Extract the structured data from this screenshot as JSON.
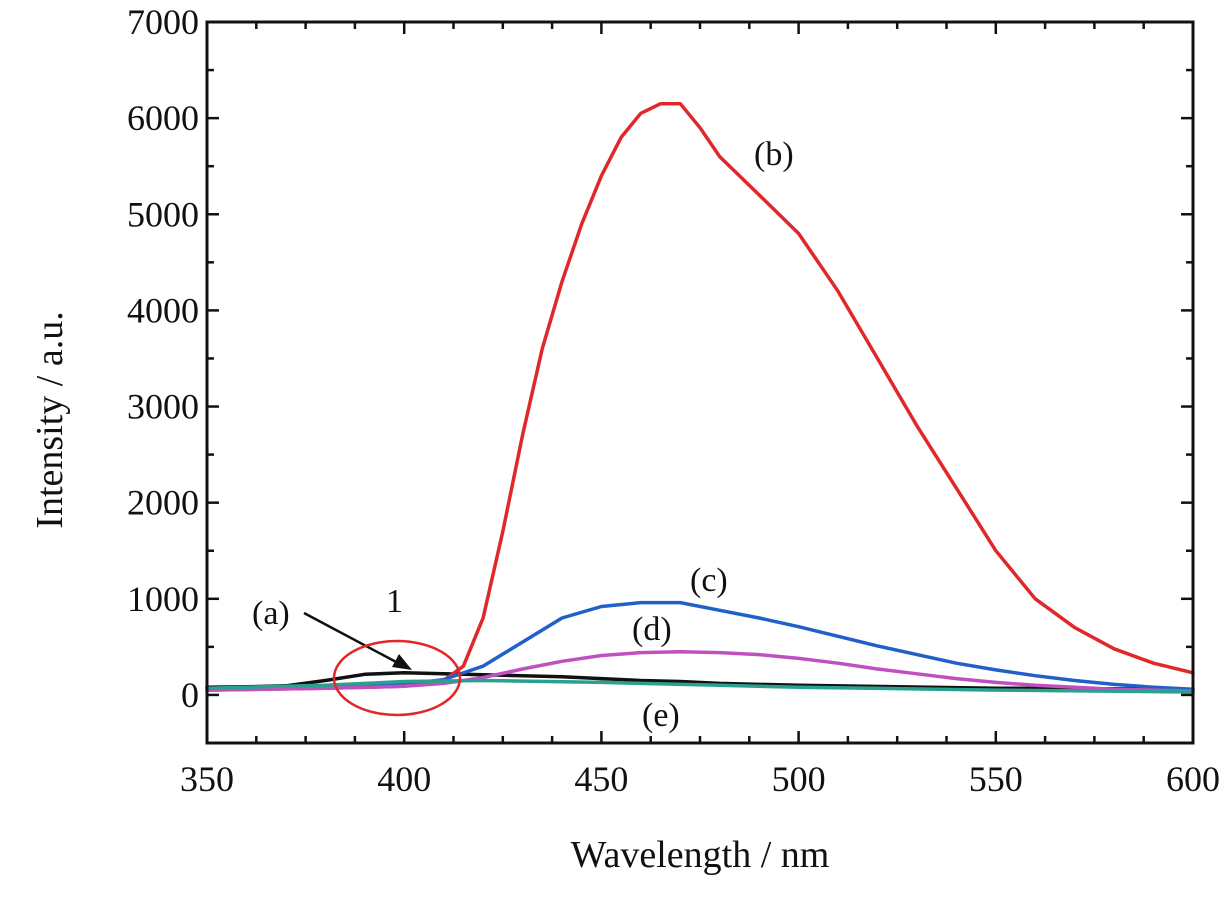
{
  "chart_data": {
    "type": "line",
    "title": "",
    "xlabel": "Wavelength / nm",
    "ylabel": "Intensity / a.u.",
    "xlim": [
      350,
      600
    ],
    "ylim": [
      -500,
      7000
    ],
    "xticks": [
      350,
      400,
      450,
      500,
      550,
      600
    ],
    "yticks": [
      0,
      1000,
      2000,
      3000,
      4000,
      5000,
      6000,
      7000
    ],
    "xtick_labels": [
      "350",
      "400",
      "450",
      "500",
      "550",
      "600"
    ],
    "ytick_labels": [
      "0",
      "1000",
      "2000",
      "3000",
      "4000",
      "5000",
      "6000",
      "7000"
    ],
    "grid": false,
    "series": [
      {
        "name": "(a)",
        "color": "#111111",
        "x": [
          350,
          360,
          370,
          380,
          390,
          400,
          410,
          420,
          430,
          440,
          450,
          460,
          470,
          480,
          500,
          550,
          600
        ],
        "values": [
          80,
          85,
          95,
          150,
          215,
          230,
          220,
          210,
          200,
          190,
          170,
          150,
          140,
          120,
          100,
          70,
          60
        ]
      },
      {
        "name": "(b)",
        "color": "#e0282a",
        "x": [
          350,
          380,
          400,
          410,
          415,
          420,
          425,
          430,
          435,
          440,
          445,
          450,
          455,
          460,
          465,
          470,
          475,
          480,
          490,
          500,
          510,
          520,
          530,
          540,
          550,
          560,
          570,
          580,
          590,
          600
        ],
        "values": [
          50,
          70,
          90,
          150,
          300,
          800,
          1700,
          2700,
          3600,
          4300,
          4900,
          5400,
          5800,
          6050,
          6150,
          6150,
          5900,
          5600,
          5200,
          4800,
          4200,
          3500,
          2800,
          2150,
          1500,
          1000,
          700,
          480,
          330,
          230
        ]
      },
      {
        "name": "(c)",
        "color": "#2060c8",
        "x": [
          350,
          380,
          400,
          410,
          420,
          430,
          440,
          450,
          460,
          470,
          480,
          490,
          500,
          510,
          520,
          530,
          540,
          550,
          560,
          570,
          580,
          590,
          600
        ],
        "values": [
          60,
          80,
          110,
          160,
          300,
          550,
          800,
          920,
          960,
          960,
          880,
          800,
          710,
          610,
          510,
          420,
          330,
          260,
          200,
          150,
          110,
          80,
          60
        ]
      },
      {
        "name": "(d)",
        "color": "#c050c0",
        "x": [
          350,
          380,
          400,
          410,
          420,
          430,
          440,
          450,
          460,
          470,
          480,
          490,
          500,
          510,
          520,
          530,
          540,
          550,
          560,
          570,
          580,
          590,
          600
        ],
        "values": [
          50,
          70,
          90,
          120,
          180,
          270,
          350,
          410,
          440,
          450,
          440,
          420,
          380,
          330,
          270,
          220,
          170,
          130,
          100,
          80,
          60,
          50,
          40
        ]
      },
      {
        "name": "(e)",
        "color": "#2aa08f",
        "x": [
          350,
          380,
          400,
          420,
          450,
          480,
          500,
          550,
          600
        ],
        "values": [
          70,
          100,
          140,
          150,
          130,
          100,
          80,
          50,
          30
        ]
      }
    ],
    "annotations": {
      "a": "(a)",
      "b": "(b)",
      "c": "(c)",
      "d": "(d)",
      "e": "(e)",
      "circle": "1"
    },
    "highlight_circle": {
      "x": 400,
      "y": 100,
      "color": "#e0282a"
    }
  }
}
